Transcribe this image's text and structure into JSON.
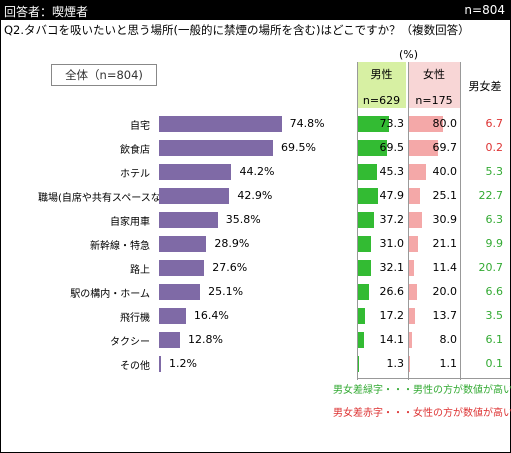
{
  "header": {
    "respondent": "回答者：喫煙者",
    "n": "n=804"
  },
  "question": "Q2.タバコを吸いたいと思う場所(一般的に禁煙の場所を含む)はどこですか？（複数回答）",
  "unit": "(%)",
  "total_label": "全体（n=804)",
  "columns": {
    "male": {
      "label": "男性",
      "n": "n=629",
      "color": "#d7f0a3"
    },
    "female": {
      "label": "女性",
      "n": "n=175",
      "color": "#f8d6d6"
    },
    "diff": {
      "label": "男女差"
    }
  },
  "colors": {
    "bar": "#7f6aa6",
    "male_bar": "#33bb33",
    "female_bar": "#f4a8a8",
    "green_text": "#33aa33",
    "red_text": "#dd3333"
  },
  "chart_data": {
    "type": "bar",
    "categories": [
      "自宅",
      "飲食店",
      "ホテル",
      "職場(自席や共有スペースなど)",
      "自家用車",
      "新幹線・特急",
      "路上",
      "駅の構内・ホーム",
      "飛行機",
      "タクシー",
      "その他"
    ],
    "series": [
      {
        "name": "全体",
        "values": [
          74.8,
          69.5,
          44.2,
          42.9,
          35.8,
          28.9,
          27.6,
          25.1,
          16.4,
          12.8,
          1.2
        ]
      },
      {
        "name": "男性",
        "values": [
          73.3,
          69.5,
          45.3,
          47.9,
          37.2,
          31.0,
          32.1,
          26.6,
          17.2,
          14.1,
          1.3
        ]
      },
      {
        "name": "女性",
        "values": [
          80.0,
          69.7,
          40.0,
          25.1,
          30.9,
          21.1,
          11.4,
          20.0,
          13.7,
          8.0,
          1.1
        ]
      },
      {
        "name": "男女差",
        "values": [
          6.7,
          0.2,
          5.3,
          22.7,
          6.3,
          9.9,
          20.7,
          6.6,
          3.5,
          6.1,
          0.1
        ]
      }
    ],
    "labels": {
      "total": [
        "74.8%",
        "69.5%",
        "44.2%",
        "42.9%",
        "35.8%",
        "28.9%",
        "27.6%",
        "25.1%",
        "16.4%",
        "12.8%",
        "1.2%"
      ],
      "male": [
        "73.3",
        "69.5",
        "45.3",
        "47.9",
        "37.2",
        "31.0",
        "32.1",
        "26.6",
        "17.2",
        "14.1",
        "1.3"
      ],
      "female": [
        "80.0",
        "69.7",
        "40.0",
        "25.1",
        "30.9",
        "21.1",
        "11.4",
        "20.0",
        "13.7",
        "8.0",
        "1.1"
      ],
      "diff": [
        "6.7",
        "0.2",
        "5.3",
        "22.7",
        "6.3",
        "9.9",
        "20.7",
        "6.6",
        "3.5",
        "6.1",
        "0.1"
      ]
    },
    "diff_higher": [
      "female",
      "female",
      "male",
      "male",
      "male",
      "male",
      "male",
      "male",
      "male",
      "male",
      "male"
    ],
    "xlim": [
      0,
      100
    ]
  },
  "legend": {
    "green": "男女差緑字・・・男性の方が数値が高い",
    "red": "男女差赤字・・・女性の方が数値が高い"
  }
}
